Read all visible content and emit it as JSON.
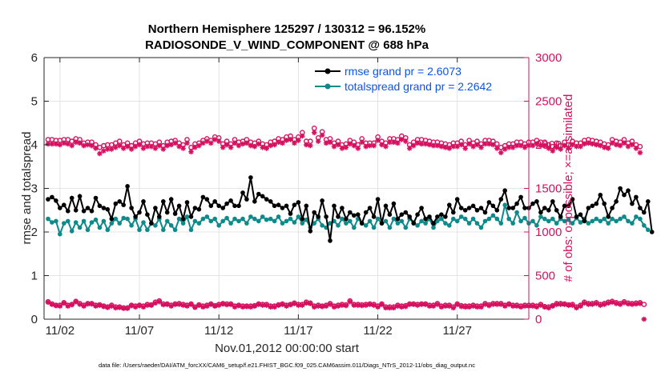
{
  "chart_data": {
    "type": "line",
    "title_line1": "Northern Hemisphere 125297 / 130312 = 96.152%",
    "title_line2": "RADIOSONDE_V_WIND_COMPONENT @ 688 hPa",
    "ylabel": "rmse and totalspread",
    "ylabel_right": "# of obs: o=possible; ×=assimilated",
    "xlabel": "Nov.01,2012 00:00:00 start",
    "footnote": "data file: /Users/raeder/DAI/ATM_forcXX/CAM6_setup/f.e21.FHIST_BGC.f09_025.CAM6assim.011/Diags_NTrS_2012-11/obs_diag_output.nc",
    "xlim": [
      0,
      30.5
    ],
    "ylim": [
      0,
      6
    ],
    "ylim_right": [
      0,
      3000
    ],
    "xticks": [
      1,
      6,
      11,
      16,
      21,
      26
    ],
    "xtick_labels": [
      "11/02",
      "11/07",
      "11/12",
      "11/17",
      "11/22",
      "11/27"
    ],
    "yticks": [
      0,
      1,
      2,
      3,
      4,
      5,
      6
    ],
    "ytick_labels": [
      "0",
      "1",
      "2",
      "3",
      "4",
      "5",
      "6"
    ],
    "yticks_right": [
      0,
      500,
      1000,
      1500,
      2000,
      2500,
      3000
    ],
    "ytick_labels_right": [
      "0",
      "500",
      "1000",
      "1500",
      "2000",
      "2500",
      "3000"
    ],
    "legend": {
      "location": "top-right",
      "rmse_label": "rmse grand pr = 2.6073",
      "spread_label": "totalspread grand pr = 2.2642"
    },
    "colors": {
      "rmse": "#000000",
      "spread": "#0e8a8a",
      "obs": "#d6105f",
      "legend_text": "#0a55e6"
    },
    "x_start": 0.25,
    "x_step": 0.25,
    "series": [
      {
        "name": "rmse",
        "values": [
          2.75,
          2.8,
          2.72,
          2.55,
          2.62,
          2.48,
          2.78,
          2.5,
          2.82,
          2.48,
          2.55,
          2.48,
          2.78,
          2.6,
          2.55,
          2.52,
          2.3,
          2.65,
          2.7,
          2.62,
          3.05,
          2.55,
          2.35,
          2.45,
          2.7,
          2.4,
          2.2,
          2.55,
          2.35,
          2.7,
          2.45,
          2.75,
          2.42,
          2.6,
          2.3,
          2.68,
          2.35,
          2.55,
          2.52,
          2.8,
          2.75,
          2.6,
          2.7,
          2.6,
          2.55,
          2.65,
          2.72,
          2.6,
          2.6,
          2.9,
          2.75,
          3.25,
          2.7,
          2.87,
          2.82,
          2.75,
          2.7,
          2.6,
          2.62,
          2.55,
          2.6,
          2.42,
          2.62,
          2.68,
          2.3,
          2.6,
          2.02,
          2.45,
          2.35,
          2.72,
          2.35,
          1.8,
          2.6,
          2.35,
          2.55,
          2.3,
          2.45,
          2.38,
          2.4,
          2.2,
          2.45,
          2.55,
          2.35,
          2.75,
          2.2,
          2.6,
          2.4,
          2.65,
          2.3,
          2.4,
          2.45,
          2.35,
          2.2,
          2.4,
          2.55,
          2.3,
          2.35,
          2.2,
          2.35,
          2.4,
          2.35,
          2.62,
          2.45,
          2.75,
          2.55,
          2.5,
          2.55,
          2.6,
          2.5,
          2.55,
          2.45,
          2.68,
          2.6,
          2.5,
          2.75,
          2.95,
          2.55,
          2.55,
          2.65,
          2.8,
          2.55,
          2.55,
          2.65,
          2.7,
          2.45,
          2.55,
          2.5,
          2.7,
          2.5,
          2.35,
          2.6,
          2.6,
          2.75,
          2.35,
          2.4,
          2.25,
          2.55,
          2.6,
          2.65,
          2.85,
          2.65,
          2.35,
          2.55,
          2.7,
          3.0,
          2.85,
          2.95,
          2.65,
          2.8,
          2.55,
          2.45,
          2.7,
          2.0
        ]
      },
      {
        "name": "totalspread",
        "values": [
          2.3,
          2.22,
          2.25,
          1.95,
          2.2,
          2.25,
          2.02,
          2.22,
          2.1,
          2.25,
          2.05,
          2.22,
          2.28,
          2.1,
          2.25,
          2.05,
          2.2,
          2.3,
          2.2,
          2.32,
          2.3,
          2.15,
          2.3,
          2.05,
          2.22,
          2.05,
          2.2,
          2.15,
          2.3,
          2.05,
          2.25,
          2.15,
          2.05,
          2.3,
          2.2,
          2.35,
          2.05,
          2.25,
          2.2,
          2.3,
          2.35,
          2.25,
          2.3,
          2.15,
          2.25,
          2.32,
          2.2,
          2.3,
          2.25,
          2.3,
          2.2,
          2.35,
          2.3,
          2.25,
          2.35,
          2.28,
          2.3,
          2.25,
          2.35,
          2.2,
          2.25,
          2.3,
          2.22,
          2.35,
          2.2,
          2.28,
          2.1,
          2.2,
          2.3,
          2.15,
          2.1,
          2.2,
          2.25,
          2.15,
          2.3,
          2.2,
          2.25,
          2.1,
          2.3,
          2.2,
          2.15,
          2.25,
          2.1,
          2.3,
          2.2,
          2.25,
          2.1,
          2.3,
          2.2,
          2.25,
          2.1,
          2.3,
          2.22,
          2.15,
          2.25,
          2.2,
          2.3,
          2.1,
          2.25,
          2.3,
          2.2,
          2.15,
          2.3,
          2.25,
          2.35,
          2.3,
          2.2,
          2.3,
          2.2,
          2.1,
          2.25,
          2.3,
          2.38,
          2.3,
          2.2,
          2.62,
          2.3,
          2.2,
          2.45,
          2.25,
          2.32,
          2.2,
          2.25,
          2.15,
          2.35,
          2.3,
          2.25,
          2.3,
          2.2,
          2.3,
          2.25,
          2.28,
          2.2,
          2.32,
          2.22,
          2.3,
          2.2,
          2.25,
          2.3,
          2.25,
          2.3,
          2.2,
          2.3,
          2.25,
          2.3,
          2.35,
          2.25,
          2.2,
          2.35,
          2.3,
          2.15,
          2.05
        ]
      },
      {
        "name": "obs_possible",
        "values": [
          2060,
          2060,
          2050,
          2050,
          2060,
          2060,
          2040,
          2070,
          2060,
          2020,
          2030,
          2030,
          2000,
          1970,
          1990,
          2000,
          2000,
          2020,
          2040,
          2000,
          2020,
          1990,
          2020,
          2040,
          2010,
          2020,
          2020,
          2010,
          2030,
          1990,
          2030,
          2040,
          2050,
          2020,
          2000,
          2060,
          1970,
          2010,
          2020,
          2050,
          2070,
          2050,
          2090,
          2080,
          2010,
          2040,
          2010,
          2060,
          2030,
          2040,
          2060,
          2030,
          2020,
          2040,
          2010,
          2000,
          2030,
          2040,
          2070,
          2060,
          2090,
          2100,
          2060,
          2090,
          2140,
          2040,
          2040,
          2190,
          2080,
          2150,
          2060,
          2070,
          2020,
          2040,
          2000,
          2010,
          2050,
          2030,
          2000,
          2070,
          2020,
          2020,
          2020,
          2090,
          2040,
          2020,
          2070,
          2070,
          2060,
          2100,
          2080,
          2000,
          2030,
          2060,
          2060,
          2050,
          2040,
          2030,
          2030,
          2020,
          2010,
          2000,
          2020,
          2020,
          2040,
          2000,
          2050,
          2020,
          2040,
          2010,
          2050,
          2050,
          2040,
          2010,
          1970,
          1990,
          2010,
          2010,
          2030,
          2030,
          2010,
          2030,
          2030,
          2050,
          2030,
          2030,
          2000,
          1980,
          2020,
          1990,
          2030,
          2000,
          2040,
          2020,
          2020,
          2050,
          2060,
          2050,
          2040,
          2030,
          2010,
          2000,
          2060,
          2040,
          2030,
          2060,
          2020,
          2040,
          2000,
          1980
        ]
      },
      {
        "name": "obs_assimilated",
        "values": [
          2010,
          2010,
          2010,
          2000,
          2020,
          2010,
          1990,
          2030,
          2020,
          1990,
          2000,
          1990,
          1960,
          1900,
          1930,
          1950,
          1950,
          1970,
          1990,
          1960,
          1980,
          1950,
          1980,
          2000,
          1960,
          1980,
          1980,
          1960,
          1990,
          1950,
          1990,
          2000,
          2020,
          1980,
          1960,
          2020,
          1920,
          1970,
          1990,
          2020,
          2040,
          2020,
          2060,
          2040,
          1970,
          2000,
          1970,
          2020,
          1990,
          2010,
          2020,
          1990,
          1980,
          2010,
          1970,
          1960,
          1990,
          2000,
          2030,
          2020,
          2050,
          2060,
          2020,
          2050,
          2100,
          2000,
          1990,
          2140,
          2040,
          2110,
          2020,
          2030,
          1980,
          2000,
          1960,
          1970,
          2010,
          1990,
          1960,
          2030,
          1980,
          1990,
          1990,
          2050,
          2000,
          1980,
          2030,
          2030,
          2020,
          2060,
          2040,
          1960,
          1990,
          2020,
          2010,
          2010,
          2000,
          1990,
          1990,
          1980,
          1970,
          1960,
          1980,
          1980,
          2000,
          1960,
          2010,
          1980,
          2000,
          1970,
          2010,
          2010,
          2000,
          1960,
          1910,
          1950,
          1970,
          1970,
          1990,
          1990,
          1970,
          1990,
          1990,
          2010,
          1990,
          1990,
          1960,
          1930,
          1970,
          1950,
          1990,
          1960,
          2000,
          1980,
          1980,
          2010,
          2020,
          2010,
          2000,
          1990,
          1970,
          1960,
          2020,
          2000,
          1990,
          2020,
          1980,
          2000,
          1960,
          1910
        ]
      },
      {
        "name": "obs_low_possible",
        "values": [
          200,
          175,
          160,
          160,
          190,
          160,
          170,
          205,
          180,
          160,
          180,
          180,
          160,
          165,
          150,
          140,
          160,
          140,
          140,
          130,
          130,
          160,
          150,
          160,
          150,
          170,
          165,
          195,
          210,
          175,
          175,
          160,
          175,
          180,
          170,
          160,
          175,
          140,
          165,
          150,
          160,
          175,
          155,
          170,
          180,
          175,
          175,
          150,
          160,
          150,
          150,
          150,
          155,
          175,
          170,
          170,
          150,
          150,
          165,
          175,
          160,
          170,
          185,
          170,
          170,
          195,
          185,
          150,
          160,
          150,
          160,
          180,
          150,
          160,
          170,
          165,
          210,
          170,
          170,
          165,
          170,
          175,
          170,
          150,
          175,
          140,
          140,
          140,
          160,
          150,
          155,
          175,
          175,
          170,
          175,
          175,
          160,
          160,
          180,
          150,
          160,
          160,
          140,
          175,
          155,
          150,
          150,
          160,
          150,
          150,
          180,
          165,
          180,
          180,
          180,
          160,
          175,
          160,
          160,
          150,
          160,
          160,
          160,
          150,
          170,
          145,
          140,
          155,
          180,
          180,
          175,
          165,
          170,
          140,
          160,
          195,
          180,
          180,
          190,
          170,
          180,
          195,
          205,
          190,
          180,
          200,
          185,
          180,
          185,
          190,
          170
        ]
      },
      {
        "name": "obs_low_assimilated",
        "values": [
          195,
          170,
          155,
          150,
          185,
          150,
          165,
          200,
          170,
          150,
          175,
          175,
          150,
          160,
          145,
          135,
          150,
          130,
          135,
          125,
          125,
          155,
          140,
          155,
          140,
          160,
          160,
          185,
          200,
          165,
          170,
          150,
          170,
          170,
          160,
          150,
          170,
          135,
          160,
          140,
          150,
          170,
          150,
          160,
          175,
          165,
          170,
          140,
          155,
          140,
          145,
          140,
          150,
          170,
          160,
          160,
          140,
          140,
          160,
          170,
          150,
          165,
          180,
          160,
          160,
          185,
          180,
          140,
          150,
          145,
          150,
          170,
          140,
          150,
          160,
          155,
          200,
          160,
          160,
          155,
          160,
          170,
          160,
          140,
          170,
          130,
          130,
          130,
          150,
          140,
          145,
          170,
          170,
          160,
          170,
          170,
          150,
          150,
          170,
          140,
          150,
          150,
          130,
          170,
          145,
          140,
          140,
          150,
          140,
          140,
          170,
          155,
          170,
          170,
          170,
          150,
          170,
          150,
          150,
          140,
          150,
          150,
          150,
          140,
          160,
          140,
          130,
          150,
          170,
          170,
          170,
          160,
          160,
          130,
          150,
          185,
          170,
          170,
          180,
          160,
          170,
          185,
          195,
          180,
          170,
          190,
          175,
          170,
          175,
          180,
          0
        ]
      }
    ]
  }
}
